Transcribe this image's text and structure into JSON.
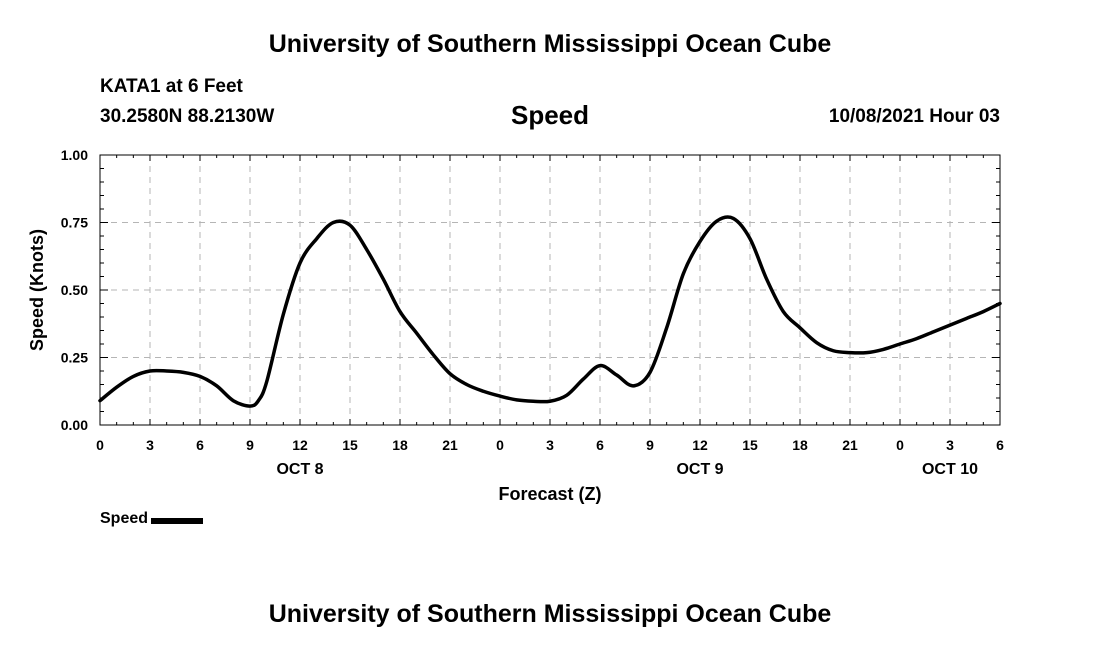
{
  "header": {
    "title": "University of Southern Mississippi Ocean Cube",
    "station": "KATA1 at 6 Feet",
    "coords": "30.2580N  88.2130W",
    "datetime": "10/08/2021 Hour 03"
  },
  "footer": {
    "title": "University of Southern Mississippi Ocean Cube"
  },
  "chart_data": {
    "type": "line",
    "title": "Speed",
    "xlabel": "Forecast (Z)",
    "ylabel": "Speed (Knots)",
    "xlim": [
      0,
      54
    ],
    "ylim": [
      0,
      1
    ],
    "yticks": [
      "0.00",
      "0.25",
      "0.50",
      "0.75",
      "1.00"
    ],
    "ytick_values": [
      0,
      0.25,
      0.5,
      0.75,
      1.0
    ],
    "xticks": [
      "0",
      "3",
      "6",
      "9",
      "12",
      "15",
      "18",
      "21",
      "0",
      "3",
      "6",
      "9",
      "12",
      "15",
      "18",
      "21",
      "0",
      "3",
      "6"
    ],
    "date_labels": [
      {
        "label": "OCT 8",
        "at": 12
      },
      {
        "label": "OCT 9",
        "at": 36
      },
      {
        "label": "OCT 10",
        "at": 51
      }
    ],
    "grid": true,
    "legend_position": "bottom-left",
    "series": [
      {
        "name": "Speed",
        "color": "#000000",
        "x": [
          0,
          1,
          2,
          3,
          4,
          5,
          6,
          7,
          8,
          9,
          9.5,
          10,
          11,
          12,
          13,
          14,
          15,
          16,
          17,
          18,
          19,
          20,
          21,
          22,
          23,
          24,
          25,
          26,
          27,
          28,
          29,
          30,
          31,
          32,
          33,
          34,
          35,
          36,
          37,
          38,
          39,
          40,
          41,
          42,
          43,
          44,
          45,
          46,
          47,
          48,
          49,
          50,
          51,
          52,
          53,
          54
        ],
        "values": [
          0.09,
          0.14,
          0.18,
          0.2,
          0.2,
          0.195,
          0.18,
          0.145,
          0.09,
          0.07,
          0.09,
          0.16,
          0.41,
          0.6,
          0.69,
          0.75,
          0.74,
          0.65,
          0.54,
          0.42,
          0.34,
          0.26,
          0.19,
          0.15,
          0.125,
          0.107,
          0.093,
          0.088,
          0.088,
          0.11,
          0.17,
          0.22,
          0.185,
          0.145,
          0.195,
          0.36,
          0.56,
          0.68,
          0.755,
          0.765,
          0.69,
          0.54,
          0.42,
          0.36,
          0.305,
          0.275,
          0.268,
          0.268,
          0.28,
          0.3,
          0.32,
          0.345,
          0.37,
          0.395,
          0.42,
          0.45
        ]
      }
    ]
  }
}
